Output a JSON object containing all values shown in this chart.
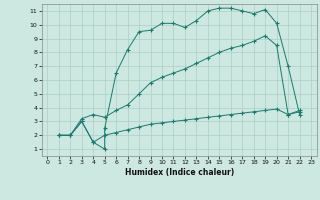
{
  "xlabel": "Humidex (Indice chaleur)",
  "background_color": "#cce8e0",
  "grid_color": "#aacfc8",
  "line_color": "#1a7a6e",
  "xlim": [
    -0.5,
    23.5
  ],
  "ylim": [
    0.5,
    11.5
  ],
  "xticks": [
    0,
    1,
    2,
    3,
    4,
    5,
    6,
    7,
    8,
    9,
    10,
    11,
    12,
    13,
    14,
    15,
    16,
    17,
    18,
    19,
    20,
    21,
    22,
    23
  ],
  "yticks": [
    1,
    2,
    3,
    4,
    5,
    6,
    7,
    8,
    9,
    10,
    11
  ],
  "curve1_x": [
    1,
    2,
    3,
    4,
    5,
    5,
    6,
    7,
    8,
    9,
    10,
    11,
    12,
    13,
    14,
    15,
    16,
    17,
    18,
    19,
    20,
    21,
    22
  ],
  "curve1_y": [
    2,
    2,
    3,
    1.5,
    1.0,
    2.5,
    6.5,
    8.2,
    9.5,
    9.6,
    10.1,
    10.1,
    9.8,
    10.3,
    11.0,
    11.2,
    11.2,
    11.0,
    10.8,
    11.1,
    10.1,
    7.0,
    3.5
  ],
  "curve2_x": [
    1,
    2,
    3,
    4,
    5,
    6,
    7,
    8,
    9,
    10,
    11,
    12,
    13,
    14,
    15,
    16,
    17,
    18,
    19,
    20,
    21,
    22
  ],
  "curve2_y": [
    2,
    2,
    3.2,
    3.5,
    3.3,
    3.8,
    4.2,
    5.0,
    5.8,
    6.2,
    6.5,
    6.8,
    7.2,
    7.6,
    8.0,
    8.3,
    8.5,
    8.8,
    9.2,
    8.5,
    3.5,
    3.8
  ],
  "curve3_x": [
    1,
    2,
    3,
    4,
    5,
    6,
    7,
    8,
    9,
    10,
    11,
    12,
    13,
    14,
    15,
    16,
    17,
    18,
    19,
    20,
    21,
    22
  ],
  "curve3_y": [
    2,
    2,
    3.0,
    1.5,
    2.0,
    2.2,
    2.4,
    2.6,
    2.8,
    2.9,
    3.0,
    3.1,
    3.2,
    3.3,
    3.4,
    3.5,
    3.6,
    3.7,
    3.8,
    3.9,
    3.5,
    3.7
  ]
}
